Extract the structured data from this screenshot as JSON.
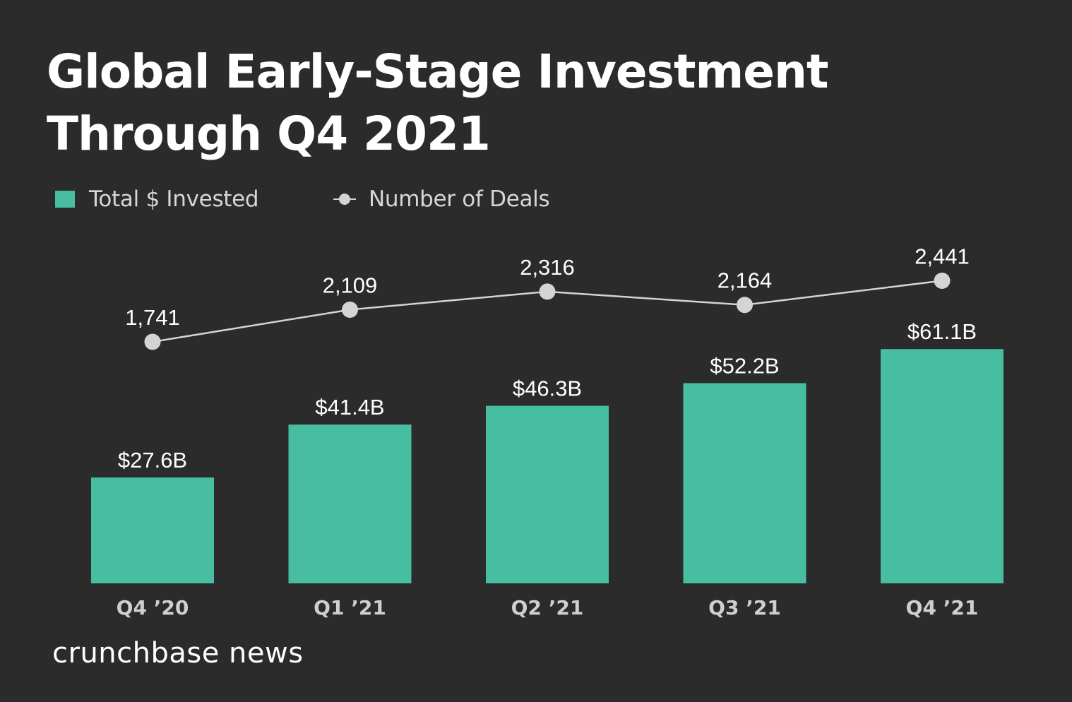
{
  "chart_data": {
    "type": "bar",
    "title": "Global Early-Stage Investment Through Q4 2021",
    "categories": [
      "Q4 ’20",
      "Q1 ’21",
      "Q2 ’21",
      "Q3 ’21",
      "Q4 ’21"
    ],
    "series": [
      {
        "name": "Total $ Invested",
        "type": "bar",
        "values": [
          27.6,
          41.4,
          46.3,
          52.2,
          61.1
        ],
        "labels": [
          "$27.6B",
          "$41.4B",
          "$46.3B",
          "$52.2B",
          "$61.1B"
        ],
        "color": "#47bea2"
      },
      {
        "name": "Number of Deals",
        "type": "line",
        "values": [
          1741,
          2109,
          2316,
          2164,
          2441
        ],
        "labels": [
          "1,741",
          "2,109",
          "2,316",
          "2,164",
          "2,441"
        ],
        "color": "#d4d4d4"
      }
    ],
    "xlabel": "",
    "ylabel": "",
    "grid": false,
    "legend": "top-left"
  },
  "legend": {
    "bars_label": "Total $ Invested",
    "line_label": "Number of Deals"
  },
  "footer": {
    "brand": "crunchbase news"
  },
  "colors": {
    "background": "#2b2b2b",
    "bar": "#47bea2",
    "line": "#d4d4d4",
    "text": "#ffffff",
    "axis_label": "#cfcfcf"
  }
}
